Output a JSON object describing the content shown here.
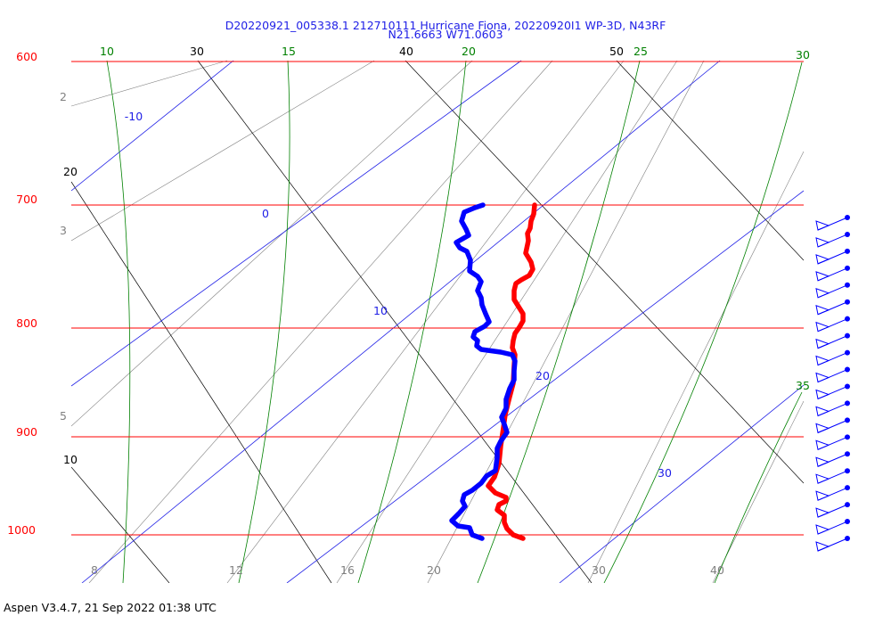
{
  "header": {
    "title_line1": "D20220921_005338.1 212710111 Hurricane Fiona, 20220920I1 WP-3D, N43RF",
    "title_line2": "N21.6663 W71.0603"
  },
  "footer": {
    "text": "Aspen V3.4.7, 21 Sep 2022  01:38 UTC"
  },
  "chart_data": {
    "type": "line",
    "title": "D20220921_005338.1 212710111 Hurricane Fiona, 20220920I1 WP-3D, N43RF / N21.6663 W71.0603",
    "diagram": "skew-T log-P",
    "colors": {
      "isobar": "#ff0000",
      "isotherm": "#1e1ee6",
      "dry_adiabat": "#000000",
      "moist_adiabat": "#008000",
      "mixing_ratio": "#808080",
      "temperature": "#ff0000",
      "dewpoint": "#0000ff"
    },
    "pressure_labels": [
      "600",
      "700",
      "800",
      "900",
      "1000"
    ],
    "isotherm_labels": [
      "-10",
      "0",
      "10",
      "20",
      "30"
    ],
    "dry_adiabat_labels": [
      "30",
      "40",
      "50",
      "20",
      "10"
    ],
    "moist_adiabat_labels": [
      "10",
      "15",
      "20",
      "25",
      "30",
      "35"
    ],
    "mixing_ratio_labels": [
      "2",
      "3",
      "5",
      "8",
      "12",
      "16",
      "20",
      "30",
      "40"
    ],
    "series": [
      {
        "name": "",
        "variable": "temperature",
        "color": "#ff0000",
        "points": [
          [
            600,
            230
          ],
          [
            599,
            240
          ],
          [
            596,
            248
          ],
          [
            595,
            256
          ],
          [
            592,
            262
          ],
          [
            593,
            270
          ],
          [
            590,
            284
          ],
          [
            596,
            294
          ],
          [
            598,
            302
          ],
          [
            594,
            309
          ],
          [
            585,
            314
          ],
          [
            579,
            318
          ],
          [
            577,
            326
          ],
          [
            577,
            336
          ],
          [
            582,
            344
          ],
          [
            587,
            352
          ],
          [
            587,
            360
          ],
          [
            583,
            367
          ],
          [
            578,
            374
          ],
          [
            576,
            382
          ],
          [
            575,
            390
          ],
          [
            578,
            398
          ],
          [
            577,
            410
          ],
          [
            576,
            430
          ],
          [
            572,
            445
          ],
          [
            567,
            465
          ],
          [
            565,
            480
          ],
          [
            562,
            500
          ],
          [
            560,
            520
          ],
          [
            555,
            535
          ],
          [
            548,
            545
          ],
          [
            556,
            553
          ],
          [
            568,
            558
          ],
          [
            568,
            562
          ],
          [
            560,
            566
          ],
          [
            558,
            572
          ],
          [
            566,
            578
          ],
          [
            566,
            586
          ],
          [
            569,
            593
          ],
          [
            576,
            600
          ],
          [
            587,
            604
          ]
        ]
      },
      {
        "name": "",
        "variable": "dewpoint",
        "color": "#0000ff",
        "points": [
          [
            542,
            230
          ],
          [
            533,
            233
          ],
          [
            521,
            238
          ],
          [
            518,
            248
          ],
          [
            523,
            257
          ],
          [
            526,
            264
          ],
          [
            519,
            268
          ],
          [
            512,
            272
          ],
          [
            516,
            278
          ],
          [
            524,
            282
          ],
          [
            528,
            292
          ],
          [
            527,
            304
          ],
          [
            536,
            310
          ],
          [
            540,
            316
          ],
          [
            536,
            326
          ],
          [
            540,
            334
          ],
          [
            541,
            342
          ],
          [
            545,
            352
          ],
          [
            549,
            361
          ],
          [
            544,
            366
          ],
          [
            533,
            372
          ],
          [
            531,
            378
          ],
          [
            536,
            382
          ],
          [
            535,
            388
          ],
          [
            540,
            392
          ],
          [
            562,
            395
          ],
          [
            575,
            398
          ],
          [
            578,
            405
          ],
          [
            577,
            416
          ],
          [
            577,
            426
          ],
          [
            572,
            436
          ],
          [
            568,
            448
          ],
          [
            568,
            458
          ],
          [
            563,
            468
          ],
          [
            566,
            476
          ],
          [
            569,
            485
          ],
          [
            562,
            495
          ],
          [
            558,
            503
          ],
          [
            558,
            513
          ],
          [
            556,
            528
          ],
          [
            546,
            534
          ],
          [
            540,
            542
          ],
          [
            530,
            550
          ],
          [
            521,
            555
          ],
          [
            519,
            562
          ],
          [
            522,
            568
          ],
          [
            515,
            576
          ],
          [
            507,
            584
          ],
          [
            514,
            590
          ],
          [
            527,
            592
          ],
          [
            530,
            600
          ],
          [
            541,
            604
          ]
        ]
      }
    ],
    "wind_barbs": 20
  }
}
